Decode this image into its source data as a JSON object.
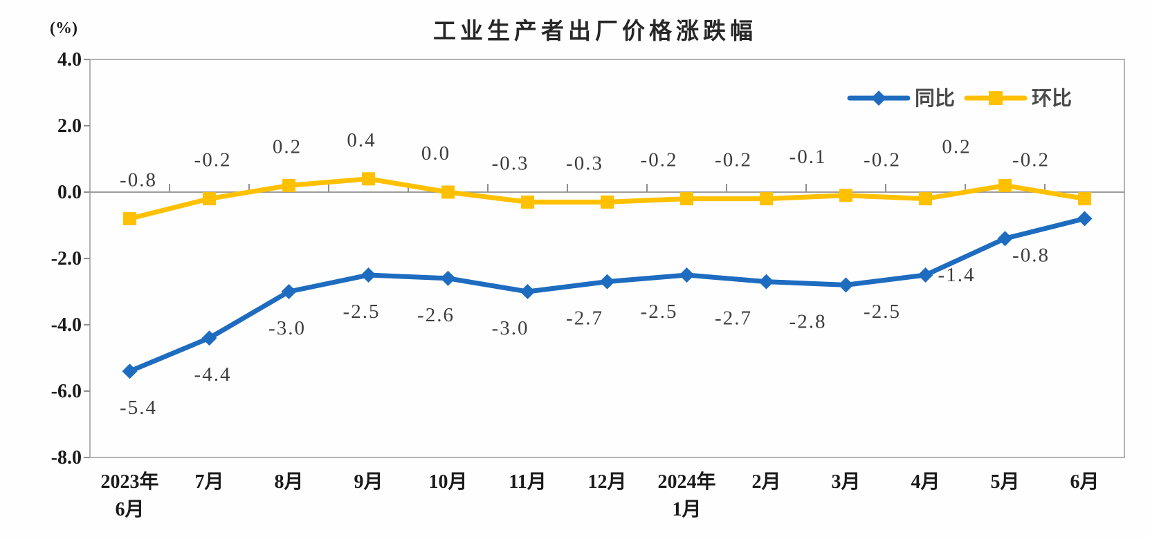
{
  "title": "工业生产者出厂价格涨跌幅",
  "unit_label": "(%)",
  "chart_data": {
    "type": "line",
    "categories": [
      [
        "2023年",
        "6月"
      ],
      [
        "7月"
      ],
      [
        "8月"
      ],
      [
        "9月"
      ],
      [
        "10月"
      ],
      [
        "11月"
      ],
      [
        "12月"
      ],
      [
        "2024年",
        "1月"
      ],
      [
        "2月"
      ],
      [
        "3月"
      ],
      [
        "4月"
      ],
      [
        "5月"
      ],
      [
        "6月"
      ]
    ],
    "series": [
      {
        "name": "同比",
        "marker": "diamond",
        "color": "#1E6CC0",
        "label_side": "below",
        "values": [
          -5.4,
          -4.4,
          -3.0,
          -2.5,
          -2.6,
          -3.0,
          -2.7,
          -2.5,
          -2.7,
          -2.8,
          -2.5,
          -1.4,
          -0.8
        ]
      },
      {
        "name": "环比",
        "marker": "square",
        "color": "#FFC000",
        "label_side": "above",
        "values": [
          -0.8,
          -0.2,
          0.2,
          0.4,
          0.0,
          -0.3,
          -0.3,
          -0.2,
          -0.2,
          -0.1,
          -0.2,
          0.2,
          -0.2
        ]
      }
    ],
    "ylim": [
      -8.0,
      4.0
    ],
    "yticks": [
      4.0,
      2.0,
      0.0,
      -2.0,
      -4.0,
      -6.0,
      -8.0
    ],
    "ytick_labels": [
      "4.0",
      "2.0",
      "0.0",
      "-2.0",
      "-4.0",
      "-6.0",
      "-8.0"
    ],
    "grid": false,
    "legend_position": "top-right",
    "colors": {
      "axis_border": "#b3b3b3",
      "zero_line": "#9c9c9c",
      "tick": "#8f8f8f",
      "axis_text": "#1a1a1a",
      "data_label": "#3d3d3d",
      "legend_text": "#4a4a4a"
    }
  }
}
